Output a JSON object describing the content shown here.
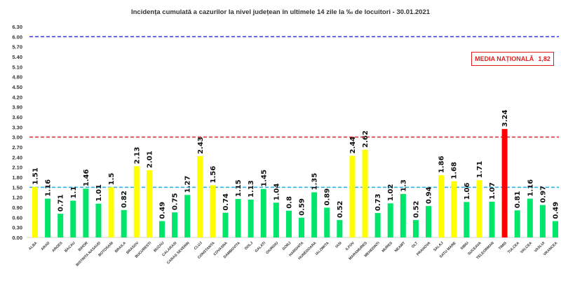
{
  "chart_data": {
    "type": "bar",
    "title": "Incidența cumulată a cazurilor la nivel județean în ultimele 14 zile la ‰ de locuitori - 30.01.2021",
    "xlabel": "",
    "ylabel": "",
    "ylim": [
      0,
      6.3
    ],
    "ytick_step": 0.3,
    "grid": false,
    "categories": [
      "ALBA",
      "ARAD",
      "ARGES",
      "BACAU",
      "BIHOR",
      "BISTRITA NASAUD",
      "BOTOSANI",
      "BRAILA",
      "BRASOV",
      "BUCURESTI",
      "BUZAU",
      "CALARASI",
      "CARAS SEVERIN",
      "CLUJ",
      "CONSTANTA",
      "COVASNA",
      "DAMBOVITA",
      "DOLJ",
      "GALATI",
      "GIURGIU",
      "GORJ",
      "HARGHITA",
      "HUNEDOARA",
      "IALOMITA",
      "IASI",
      "ILFOV",
      "MARAMURES",
      "MEHEDINTI",
      "MURES",
      "NEAMT",
      "OLT",
      "PRAHOVA",
      "SALAJ",
      "SATU MARE",
      "SIBIU",
      "SUCEAVA",
      "TELEORMAN",
      "TIMIS",
      "TULCEA",
      "VALCEA",
      "VASLUI",
      "VRANCEA"
    ],
    "values": [
      1.51,
      1.16,
      0.71,
      1.1,
      1.46,
      1.01,
      1.5,
      0.82,
      2.13,
      2.01,
      0.49,
      0.75,
      1.27,
      2.43,
      1.56,
      0.74,
      1.15,
      1.13,
      1.45,
      1.04,
      0.8,
      0.59,
      1.35,
      0.89,
      0.52,
      2.44,
      2.62,
      0.73,
      1.02,
      1.3,
      0.52,
      0.94,
      1.86,
      1.68,
      1.06,
      1.71,
      1.07,
      3.24,
      0.81,
      1.16,
      0.97,
      0.49
    ],
    "reference_lines": [
      {
        "value": 6.0,
        "color": "#3a2fd0"
      },
      {
        "value": 3.0,
        "color": "#d42b3a"
      },
      {
        "value": 1.5,
        "color": "#2aaad8"
      }
    ],
    "colors": {
      "low": "#00e66b",
      "medium": "#ffff00",
      "high": "#ff0000"
    },
    "thresholds": {
      "medium": 1.5,
      "high": 3.0
    },
    "annotation": {
      "label": "MEDIA NAȚIONALĂ",
      "value": "1,82",
      "color": "#e02020"
    }
  }
}
